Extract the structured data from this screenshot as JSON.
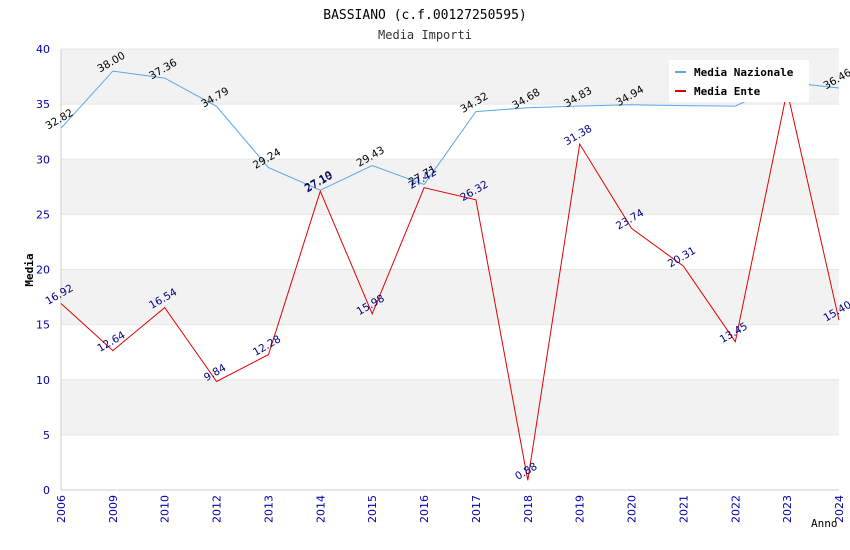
{
  "chart_data": {
    "type": "line",
    "title": "BASSIANO (c.f.00127250595)",
    "subtitle": "Media Importi",
    "xlabel": "Anno",
    "ylabel": "Media",
    "ylim": [
      0,
      40
    ],
    "yticks": [
      0,
      5,
      10,
      15,
      20,
      25,
      30,
      35,
      40
    ],
    "categories": [
      "2006",
      "2009",
      "2010",
      "2012",
      "2013",
      "2014",
      "2015",
      "2016",
      "2017",
      "2018",
      "2019",
      "2020",
      "2021",
      "2022",
      "2023",
      "2024"
    ],
    "legend_position": "top-right",
    "grid": true,
    "series": [
      {
        "name": "Media Nazionale",
        "color": "#5aa7e6",
        "label_color": "#000000",
        "values": [
          32.82,
          38.0,
          37.36,
          34.79,
          29.24,
          27.19,
          29.43,
          27.71,
          34.32,
          34.68,
          34.83,
          34.94,
          34.87,
          34.82,
          36.98,
          36.46
        ],
        "labels": [
          "32.82",
          "38.00",
          "37.36",
          "34.79",
          "29.24",
          "27.19",
          "29.43",
          "27.71",
          "34.32",
          "34.68",
          "34.83",
          "34.94",
          "",
          "",
          "",
          "36.46"
        ]
      },
      {
        "name": "Media Ente",
        "color": "#e00000",
        "label_color": "#000080",
        "values": [
          16.92,
          12.64,
          16.54,
          9.84,
          12.28,
          27.1,
          15.98,
          27.42,
          26.32,
          0.88,
          31.38,
          23.74,
          20.31,
          13.45,
          36.2,
          15.4
        ],
        "labels": [
          "16.92",
          "12.64",
          "16.54",
          "9.84",
          "12.28",
          "27.10",
          "15.98",
          "27.42",
          "26.32",
          "0.88",
          "31.38",
          "23.74",
          "20.31",
          "13.45",
          "",
          "15.40"
        ]
      }
    ]
  }
}
